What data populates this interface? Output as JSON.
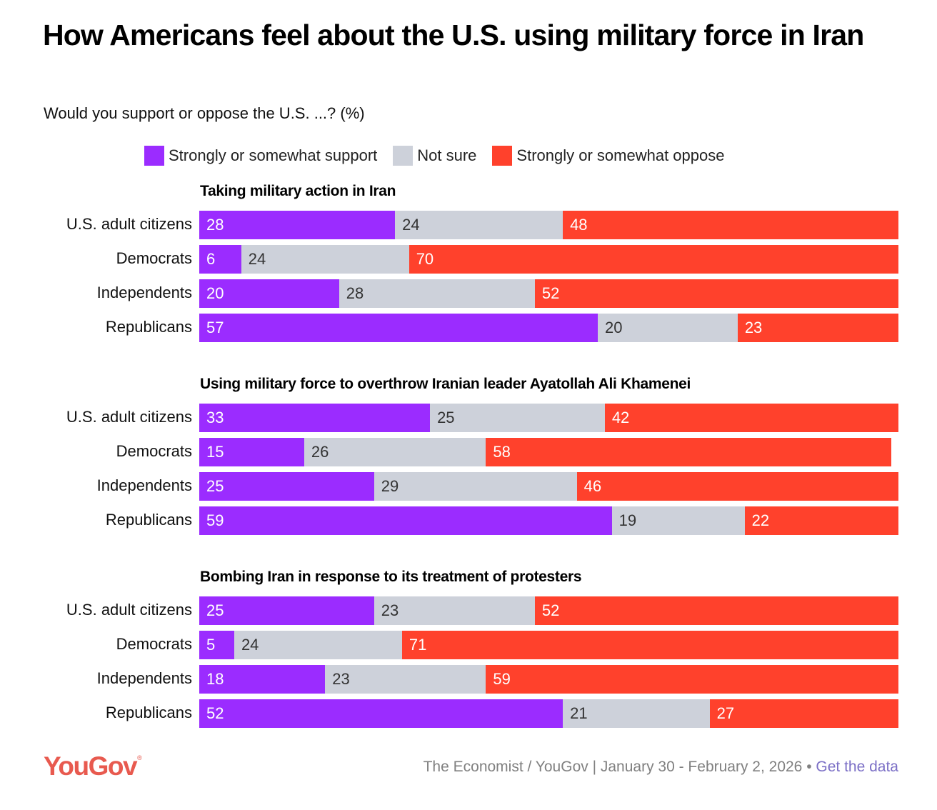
{
  "title": "How Americans feel about the U.S. using military force in Iran",
  "subtitle": "Would you support or oppose the U.S. ...? (%)",
  "legend": [
    {
      "key": "support",
      "label": "Strongly or somewhat support",
      "color": "#9b2cff"
    },
    {
      "key": "notsure",
      "label": "Not sure",
      "color": "#cdd1da"
    },
    {
      "key": "oppose",
      "label": "Strongly or somewhat oppose",
      "color": "#ff412c"
    }
  ],
  "footer": {
    "logo": "YouGov",
    "logo_mark": "®",
    "source": "The Economist / YouGov | January 30 - February 2, 2026 •",
    "link": "Get the data"
  },
  "chart_data": {
    "type": "bar",
    "orientation": "horizontal",
    "stacked": true,
    "title": "How Americans feel about the U.S. using military force in Iran",
    "subtitle": "Would you support or oppose the U.S. ...? (%)",
    "xlabel": "",
    "ylabel": "",
    "xlim": [
      0,
      100
    ],
    "legend_position": "top",
    "series_names": [
      "Strongly or somewhat support",
      "Not sure",
      "Strongly or somewhat oppose"
    ],
    "panels": [
      {
        "title": "Taking military action in Iran",
        "categories": [
          "U.S. adult citizens",
          "Democrats",
          "Independents",
          "Republicans"
        ],
        "series": [
          {
            "name": "Strongly or somewhat support",
            "values": [
              28,
              6,
              20,
              57
            ]
          },
          {
            "name": "Not sure",
            "values": [
              24,
              24,
              28,
              20
            ]
          },
          {
            "name": "Strongly or somewhat oppose",
            "values": [
              48,
              70,
              52,
              23
            ]
          }
        ]
      },
      {
        "title": "Using military force to overthrow Iranian leader Ayatollah Ali Khamenei",
        "categories": [
          "U.S. adult citizens",
          "Democrats",
          "Independents",
          "Republicans"
        ],
        "series": [
          {
            "name": "Strongly or somewhat support",
            "values": [
              33,
              15,
              25,
              59
            ]
          },
          {
            "name": "Not sure",
            "values": [
              25,
              26,
              29,
              19
            ]
          },
          {
            "name": "Strongly or somewhat oppose",
            "values": [
              42,
              58,
              46,
              22
            ]
          }
        ]
      },
      {
        "title": "Bombing Iran in response to its treatment of protesters",
        "categories": [
          "U.S. adult citizens",
          "Democrats",
          "Independents",
          "Republicans"
        ],
        "series": [
          {
            "name": "Strongly or somewhat support",
            "values": [
              25,
              5,
              18,
              52
            ]
          },
          {
            "name": "Not sure",
            "values": [
              23,
              24,
              23,
              21
            ]
          },
          {
            "name": "Strongly or somewhat oppose",
            "values": [
              52,
              71,
              59,
              27
            ]
          }
        ]
      }
    ]
  }
}
